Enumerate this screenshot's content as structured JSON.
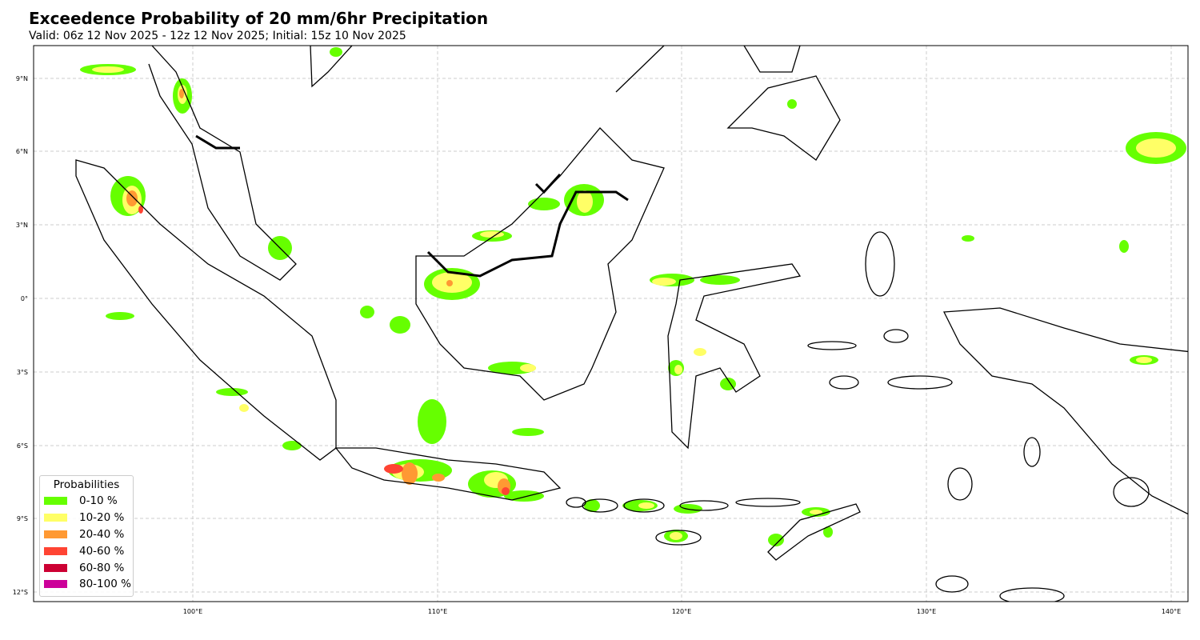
{
  "title": "Exceedence Probability of 20 mm/6hr Precipitation",
  "subtitle": "Valid: 06z 12 Nov 2025 - 12z 12 Nov 2025; Initial: 15z 10 Nov 2025",
  "map": {
    "extent": {
      "lon": [
        93.5,
        140.7
      ],
      "lat": [
        -12.4,
        10.3
      ]
    },
    "lat_ticks": [
      "9°N",
      "6°N",
      "3°N",
      "0°",
      "3°S",
      "6°S",
      "9°S",
      "12°S"
    ],
    "lon_ticks": [
      "100°E",
      "110°E",
      "120°E",
      "130°E",
      "140°E"
    ],
    "grid": true
  },
  "legend": {
    "title": "Probabilities",
    "items": [
      {
        "label": "0-10 %",
        "color": "#66ff00"
      },
      {
        "label": "10-20 %",
        "color": "#ffff66"
      },
      {
        "label": "20-40 %",
        "color": "#ff9933"
      },
      {
        "label": "40-60 %",
        "color": "#ff4433"
      },
      {
        "label": "60-80 %",
        "color": "#cc0033"
      },
      {
        "label": "80-100 %",
        "color": "#cc0099"
      }
    ]
  }
}
